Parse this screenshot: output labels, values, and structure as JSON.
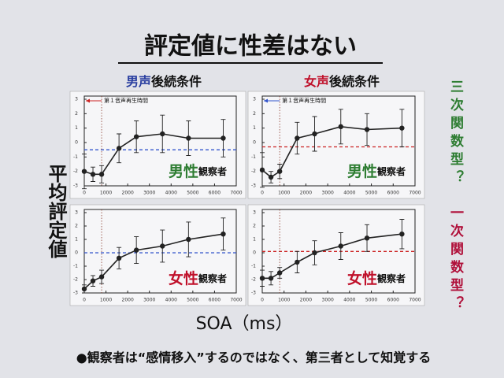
{
  "slide": {
    "title": "評定値に性差はない",
    "col_headers": [
      {
        "voice": "男声",
        "voice_color": "#2a3fa0",
        "rest": "後続条件"
      },
      {
        "voice": "女声",
        "voice_color": "#c0102a",
        "rest": "後続条件"
      }
    ],
    "y_label": "平均評定値",
    "x_label": "SOA（ms）",
    "side_labels": [
      {
        "text": "三次関数型？",
        "color": "#2e7d32"
      },
      {
        "text": "一次関数型？",
        "color": "#b0103a"
      }
    ],
    "footer": "●観察者は“感情移入”するのではなく、第三者として知覚する"
  },
  "chart_data": [
    {
      "type": "line",
      "x": [
        0,
        400,
        800,
        1600,
        2400,
        3600,
        4800,
        6400
      ],
      "values": [
        -2.0,
        -2.2,
        -2.2,
        -0.4,
        0.4,
        0.6,
        0.3,
        0.3
      ],
      "errors": [
        1.2,
        0.5,
        0.6,
        1.0,
        1.1,
        1.3,
        1.2,
        1.3
      ],
      "color": "#222222",
      "xlim": [
        0,
        7000
      ],
      "xticks": [
        0,
        1000,
        2000,
        3000,
        4000,
        5000,
        6000,
        7000
      ],
      "ylim": [
        -3,
        3
      ],
      "yticks": [
        -3,
        -2,
        -1,
        0,
        1,
        2,
        3
      ],
      "reference_line": -0.5,
      "reference_color": "#3355cc",
      "marker_x": 800,
      "annotation": "第１音声再生時間",
      "annotation_color": "#cc2222",
      "label_main": "男性",
      "label_sub": "観察者",
      "label_color": "#2e7d32"
    },
    {
      "type": "line",
      "x": [
        0,
        400,
        800,
        1600,
        2400,
        3600,
        4800,
        6400
      ],
      "values": [
        -1.9,
        -2.4,
        -2.0,
        0.3,
        0.6,
        1.1,
        0.9,
        1.0
      ],
      "errors": [
        1.2,
        0.4,
        0.5,
        1.1,
        1.2,
        1.2,
        1.1,
        1.3
      ],
      "color": "#222222",
      "xlim": [
        0,
        7000
      ],
      "xticks": [
        0,
        1000,
        2000,
        3000,
        4000,
        5000,
        6000,
        7000
      ],
      "ylim": [
        -3,
        3
      ],
      "yticks": [
        -3,
        -2,
        -1,
        0,
        1,
        2,
        3
      ],
      "reference_line": -0.3,
      "reference_color": "#cc2222",
      "marker_x": 800,
      "annotation": "第１音声再生時間",
      "annotation_color": "#3355cc",
      "label_main": "男性",
      "label_sub": "観察者",
      "label_color": "#2e7d32"
    },
    {
      "type": "line",
      "x": [
        0,
        400,
        800,
        1600,
        2400,
        3600,
        4800,
        6400
      ],
      "values": [
        -2.7,
        -2.1,
        -1.8,
        -0.4,
        0.2,
        0.5,
        1.0,
        1.4
      ],
      "errors": [
        0.3,
        0.4,
        0.5,
        0.8,
        1.0,
        1.2,
        1.3,
        1.2
      ],
      "color": "#222222",
      "xlim": [
        0,
        7000
      ],
      "xticks": [
        0,
        1000,
        2000,
        3000,
        4000,
        5000,
        6000,
        7000
      ],
      "ylim": [
        -3,
        3
      ],
      "yticks": [
        -3,
        -2,
        -1,
        0,
        1,
        2,
        3
      ],
      "reference_line": 0,
      "reference_color": "#3355cc",
      "marker_x": 800,
      "label_main": "女性",
      "label_sub": "観察者",
      "label_color": "#c0102a"
    },
    {
      "type": "line",
      "x": [
        0,
        400,
        800,
        1600,
        2400,
        3600,
        4800,
        6400
      ],
      "values": [
        -1.9,
        -1.9,
        -1.5,
        -0.7,
        0.0,
        0.5,
        1.1,
        1.4
      ],
      "errors": [
        0.6,
        0.5,
        0.4,
        0.8,
        0.9,
        1.0,
        1.0,
        1.1
      ],
      "color": "#222222",
      "xlim": [
        0,
        7000
      ],
      "xticks": [
        0,
        1000,
        2000,
        3000,
        4000,
        5000,
        6000,
        7000
      ],
      "ylim": [
        -3,
        3
      ],
      "yticks": [
        -3,
        -2,
        -1,
        0,
        1,
        2,
        3
      ],
      "reference_line": 0.1,
      "reference_color": "#cc2222",
      "marker_x": 800,
      "label_main": "女性",
      "label_sub": "観察者",
      "label_color": "#c0102a"
    }
  ]
}
